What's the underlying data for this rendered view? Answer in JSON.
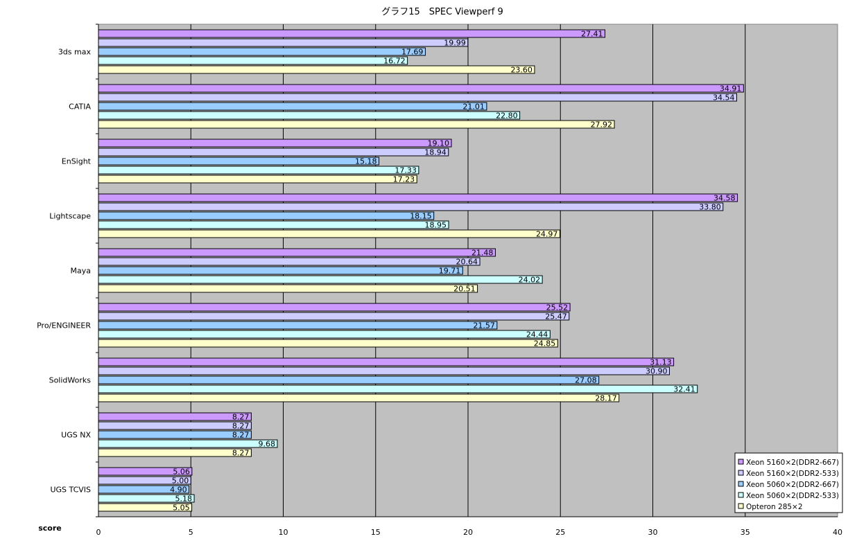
{
  "chart_data": {
    "type": "bar",
    "orientation": "horizontal",
    "title": "グラフ15　SPEC Viewperf 9",
    "xlabel": "score",
    "ylabel": "",
    "xlim": [
      0,
      40
    ],
    "xticks": [
      0,
      5,
      10,
      15,
      20,
      25,
      30,
      35,
      40
    ],
    "grid": true,
    "legend_position": "bottom-right",
    "categories": [
      "3ds max",
      "CATIA",
      "EnSight",
      "Lightscape",
      "Maya",
      "Pro/ENGINEER",
      "SolidWorks",
      "UGS NX",
      "UGS TCVIS"
    ],
    "series": [
      {
        "name": "Xeon 5160×2(DDR2-667)",
        "color": "#cc99ff",
        "values": [
          27.41,
          34.91,
          19.1,
          34.58,
          21.48,
          25.52,
          31.13,
          8.27,
          5.06
        ]
      },
      {
        "name": "Xeon 5160×2(DDR2-533)",
        "color": "#ccccff",
        "values": [
          19.99,
          34.54,
          18.94,
          33.8,
          20.64,
          25.47,
          30.9,
          8.27,
          5.0
        ]
      },
      {
        "name": "Xeon 5060×2(DDR2-667)",
        "color": "#99ccff",
        "values": [
          17.69,
          21.01,
          15.18,
          18.15,
          19.71,
          21.57,
          27.08,
          8.27,
          4.9
        ]
      },
      {
        "name": "Xeon 5060×2(DDR2-533)",
        "color": "#ccffff",
        "values": [
          16.72,
          22.8,
          17.33,
          18.95,
          24.02,
          24.44,
          32.41,
          9.68,
          5.18
        ]
      },
      {
        "name": "Opteron 285×2",
        "color": "#ffffcc",
        "values": [
          23.6,
          27.92,
          17.23,
          24.97,
          20.51,
          24.85,
          28.17,
          8.27,
          5.05
        ]
      }
    ],
    "plot_background": "#c0c0c0",
    "gridline_color": "#000000"
  }
}
